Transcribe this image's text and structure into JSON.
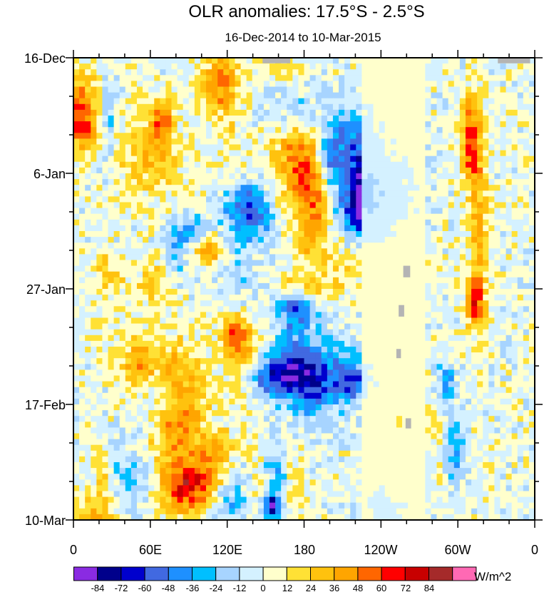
{
  "chart_data": {
    "type": "heatmap",
    "title": "OLR anomalies: 17.5°S - 2.5°S",
    "subtitle": "16-Dec-2014 to 10-Mar-2015",
    "x_ticks": [
      "0",
      "60E",
      "120E",
      "180",
      "120W",
      "60W",
      "0"
    ],
    "x_range_deg": [
      0,
      360
    ],
    "y_ticks": [
      "16-Dec",
      "6-Jan",
      "27-Jan",
      "17-Feb",
      "10-Mar"
    ],
    "y_range_days": [
      0,
      84
    ],
    "colorbar_levels": [
      "-84",
      "-72",
      "-60",
      "-48",
      "-36",
      "-24",
      "-12",
      "0",
      "12",
      "24",
      "36",
      "48",
      "60",
      "72",
      "84"
    ],
    "colorbar_colors": [
      "#8a2be2",
      "#00008b",
      "#0000cd",
      "#4169e1",
      "#1e90ff",
      "#00bfff",
      "#a7d4ff",
      "#d4f1ff",
      "#ffffcc",
      "#ffe135",
      "#ffc20e",
      "#ffa500",
      "#ff6600",
      "#ff0000",
      "#c80000",
      "#a52a2a",
      "#ff69b4"
    ],
    "units": "W/m^2",
    "missing_color": "#b4b4b4"
  }
}
